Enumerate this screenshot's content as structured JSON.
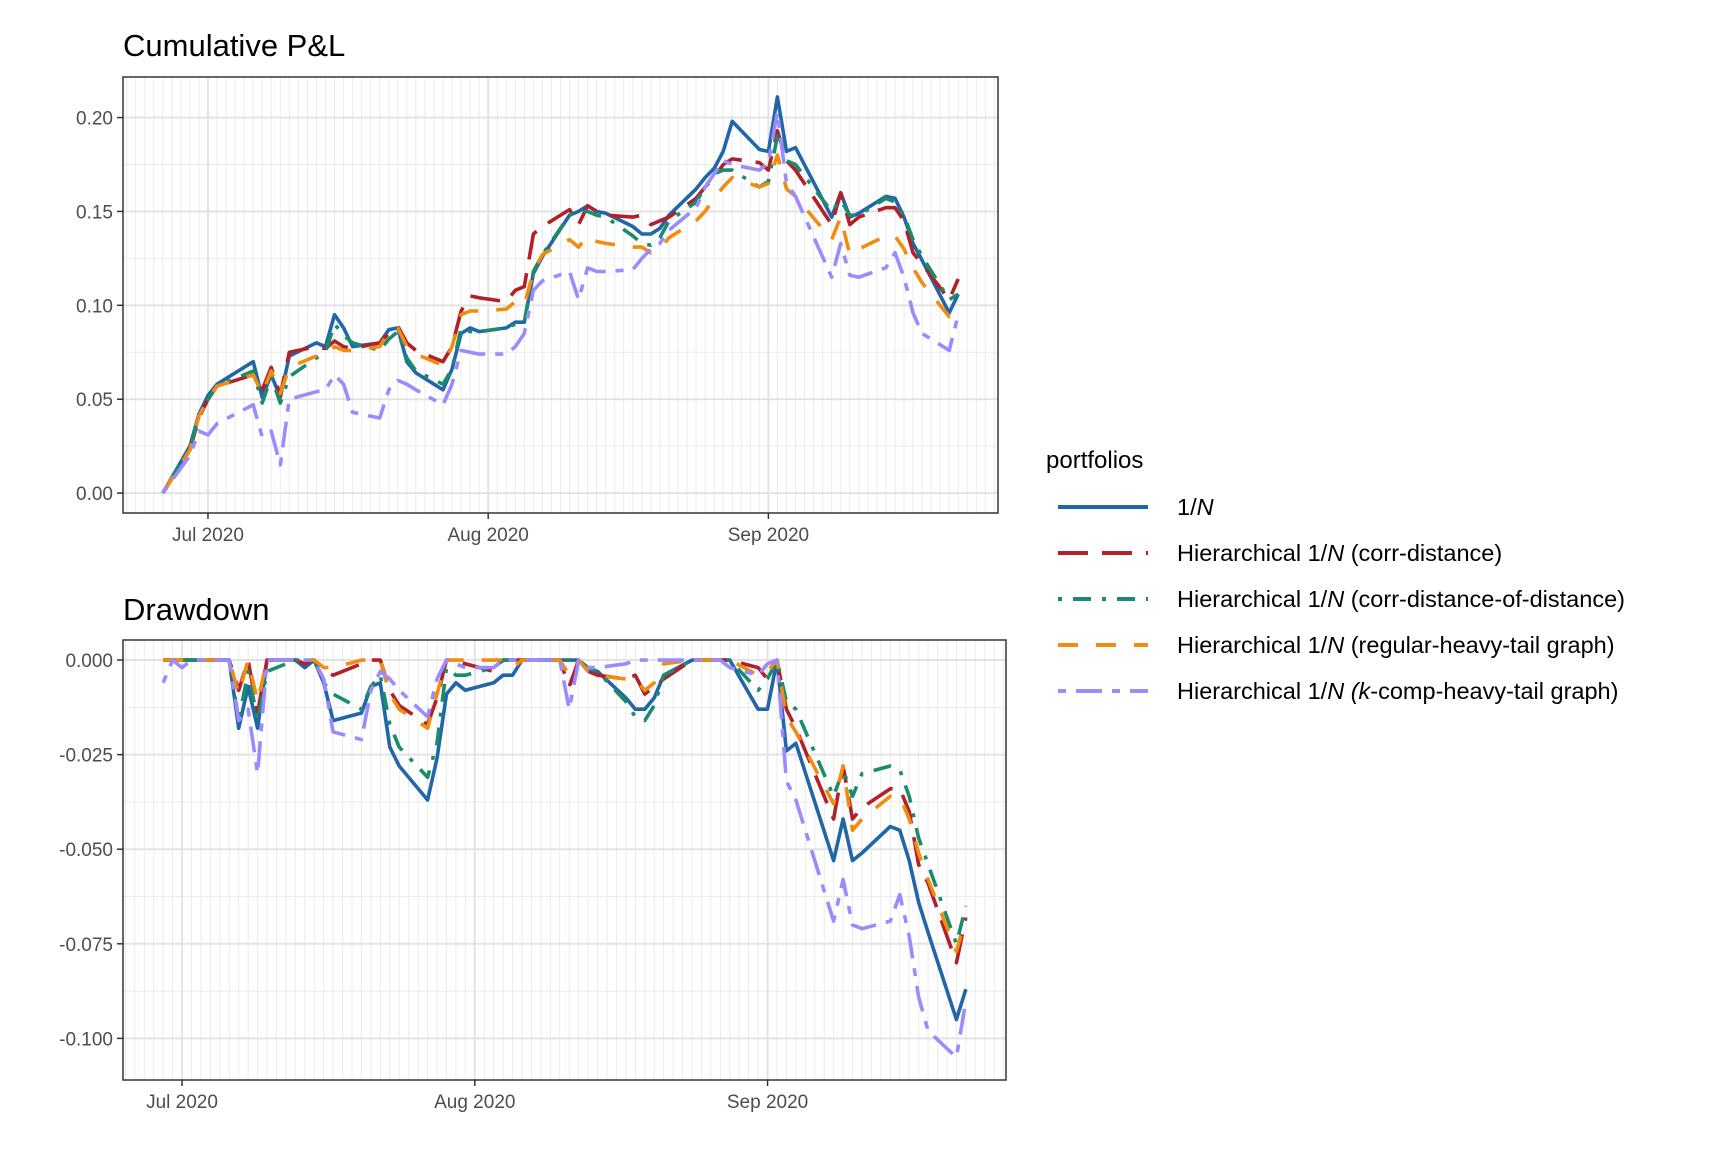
{
  "legend": {
    "title": "portfolios",
    "placement": "right",
    "entries": [
      {
        "pre": "1/",
        "italic": "N",
        "post": "",
        "color": "#2166a8",
        "linetype": "solid"
      },
      {
        "pre": "Hierarchical 1/",
        "italic": "N",
        "post": " (corr-distance)",
        "color": "#b2202a",
        "linetype": "dashed"
      },
      {
        "pre": "Hierarchical 1/",
        "italic": "N",
        "post": " (corr-distance-of-distance)",
        "color": "#1a8c6c",
        "linetype": "dotdash"
      },
      {
        "pre": "Hierarchical 1/",
        "italic": "N",
        "post": " (regular-heavy-tail graph)",
        "color": "#f08c0f",
        "linetype": "longdash"
      },
      {
        "pre": "Hierarchical 1/",
        "italic": "N (",
        "post": "",
        "k": "k",
        "post2": "-comp-heavy-tail graph)",
        "color": "#9a8bff",
        "linetype": "twodash"
      }
    ]
  },
  "chart_data": [
    {
      "type": "line",
      "title": "Cumulative P&L",
      "xlabel": "",
      "ylabel": "",
      "xlim": [
        "2020-06-26",
        "2020-09-22"
      ],
      "ylim": [
        -0.0106,
        0.2216
      ],
      "grid": true,
      "xticks": [
        {
          "date": "2020-07-01",
          "label": "Jul 2020"
        },
        {
          "date": "2020-08-01",
          "label": "Aug 2020"
        },
        {
          "date": "2020-09-01",
          "label": "Sep 2020"
        }
      ],
      "yticks": [
        {
          "value": 0,
          "label": "0.00"
        },
        {
          "value": 0.05,
          "label": "0.05"
        },
        {
          "value": 0.1,
          "label": "0.10"
        },
        {
          "value": 0.15,
          "label": "0.15"
        },
        {
          "value": 0.2,
          "label": "0.20"
        }
      ],
      "dates": [
        "2020-06-26",
        "2020-06-29",
        "2020-06-30",
        "2020-07-01",
        "2020-07-02",
        "2020-07-06",
        "2020-07-07",
        "2020-07-08",
        "2020-07-09",
        "2020-07-10",
        "2020-07-13",
        "2020-07-14",
        "2020-07-15",
        "2020-07-16",
        "2020-07-17",
        "2020-07-20",
        "2020-07-21",
        "2020-07-22",
        "2020-07-23",
        "2020-07-24",
        "2020-07-27",
        "2020-07-28",
        "2020-07-29",
        "2020-07-30",
        "2020-07-31",
        "2020-08-03",
        "2020-08-04",
        "2020-08-05",
        "2020-08-06",
        "2020-08-07",
        "2020-08-10",
        "2020-08-11",
        "2020-08-12",
        "2020-08-13",
        "2020-08-14",
        "2020-08-17",
        "2020-08-18",
        "2020-08-19",
        "2020-08-20",
        "2020-08-21",
        "2020-08-24",
        "2020-08-25",
        "2020-08-26",
        "2020-08-27",
        "2020-08-28",
        "2020-08-31",
        "2020-09-01",
        "2020-09-02",
        "2020-09-03",
        "2020-09-04",
        "2020-09-08",
        "2020-09-09",
        "2020-09-10",
        "2020-09-11",
        "2020-09-14",
        "2020-09-15",
        "2020-09-16",
        "2020-09-17",
        "2020-09-18",
        "2020-09-21",
        "2020-09-22"
      ],
      "series": [
        {
          "name": "1/N",
          "values": [
            0,
            0.025,
            0.042,
            0.052,
            0.058,
            0.07,
            0.051,
            0.063,
            0.051,
            0.073,
            0.08,
            0.078,
            0.095,
            0.088,
            0.078,
            0.08,
            0.087,
            0.088,
            0.07,
            0.064,
            0.055,
            0.066,
            0.085,
            0.088,
            0.086,
            0.088,
            0.091,
            0.091,
            0.117,
            0.126,
            0.148,
            0.15,
            0.153,
            0.15,
            0.149,
            0.142,
            0.138,
            0.138,
            0.141,
            0.148,
            0.162,
            0.168,
            0.173,
            0.182,
            0.198,
            0.183,
            0.182,
            0.211,
            0.182,
            0.184,
            0.147,
            0.16,
            0.147,
            0.149,
            0.158,
            0.157,
            0.147,
            0.133,
            0.124,
            0.096,
            0.106
          ]
        },
        {
          "name": "Hierarchical 1/N (corr-distance)",
          "values": [
            0,
            0.023,
            0.04,
            0.05,
            0.057,
            0.063,
            0.055,
            0.067,
            0.052,
            0.075,
            0.078,
            0.077,
            0.081,
            0.078,
            0.077,
            0.08,
            0.085,
            0.089,
            0.08,
            0.076,
            0.07,
            0.078,
            0.097,
            0.105,
            0.104,
            0.102,
            0.108,
            0.11,
            0.138,
            0.142,
            0.151,
            0.143,
            0.153,
            0.15,
            0.148,
            0.147,
            0.148,
            0.143,
            0.145,
            0.147,
            0.157,
            0.163,
            0.168,
            0.175,
            0.178,
            0.176,
            0.172,
            0.193,
            0.177,
            0.172,
            0.143,
            0.16,
            0.143,
            0.147,
            0.152,
            0.152,
            0.145,
            0.128,
            0.122,
            0.103,
            0.114
          ]
        },
        {
          "name": "Hierarchical 1/N (corr-distance-of-distance)",
          "values": [
            0,
            0.024,
            0.041,
            0.05,
            0.057,
            0.065,
            0.048,
            0.062,
            0.048,
            0.062,
            0.072,
            0.075,
            0.09,
            0.084,
            0.08,
            0.076,
            0.082,
            0.086,
            0.072,
            0.065,
            0.058,
            0.066,
            0.088,
            0.086,
            0.086,
            0.088,
            0.09,
            0.091,
            0.118,
            0.127,
            0.148,
            0.15,
            0.15,
            0.148,
            0.147,
            0.137,
            0.133,
            0.132,
            0.136,
            0.145,
            0.155,
            0.163,
            0.17,
            0.172,
            0.172,
            0.163,
            0.166,
            0.19,
            0.177,
            0.175,
            0.15,
            0.156,
            0.148,
            0.148,
            0.157,
            0.155,
            0.148,
            0.135,
            0.126,
            0.103,
            0.106
          ]
        },
        {
          "name": "Hierarchical 1/N (regular-heavy-tail graph)",
          "values": [
            0,
            0.023,
            0.041,
            0.05,
            0.057,
            0.063,
            0.053,
            0.065,
            0.053,
            0.067,
            0.073,
            0.074,
            0.078,
            0.076,
            0.076,
            0.078,
            0.086,
            0.088,
            0.078,
            0.074,
            0.068,
            0.078,
            0.095,
            0.097,
            0.097,
            0.098,
            0.102,
            0.1,
            0.118,
            0.127,
            0.135,
            0.131,
            0.137,
            0.134,
            0.133,
            0.131,
            0.131,
            0.128,
            0.13,
            0.136,
            0.145,
            0.15,
            0.157,
            0.163,
            0.168,
            0.163,
            0.165,
            0.18,
            0.162,
            0.158,
            0.135,
            0.147,
            0.127,
            0.13,
            0.137,
            0.137,
            0.13,
            0.12,
            0.112,
            0.094,
            0.1
          ]
        },
        {
          "name": "Hierarchical 1/N (k-comp-heavy-tail graph)",
          "values": [
            0,
            0.02,
            0.033,
            0.031,
            0.037,
            0.047,
            0.03,
            0.033,
            0.015,
            0.05,
            0.054,
            0.055,
            0.063,
            0.058,
            0.043,
            0.04,
            0.055,
            0.06,
            0.058,
            0.055,
            0.047,
            0.058,
            0.076,
            0.075,
            0.074,
            0.074,
            0.078,
            0.085,
            0.108,
            0.113,
            0.118,
            0.103,
            0.12,
            0.118,
            0.118,
            0.119,
            0.125,
            0.13,
            0.133,
            0.14,
            0.152,
            0.163,
            0.17,
            0.177,
            0.175,
            0.172,
            0.176,
            0.203,
            0.165,
            0.158,
            0.115,
            0.133,
            0.116,
            0.115,
            0.12,
            0.128,
            0.115,
            0.096,
            0.085,
            0.076,
            0.095
          ]
        }
      ]
    },
    {
      "type": "line",
      "title": "Drawdown",
      "xlabel": "",
      "ylabel": "",
      "xlim": [
        "2020-06-29",
        "2020-09-22"
      ],
      "ylim": [
        -0.111,
        0.0053
      ],
      "grid": true,
      "xticks": [
        {
          "date": "2020-07-01",
          "label": "Jul 2020"
        },
        {
          "date": "2020-08-01",
          "label": "Aug 2020"
        },
        {
          "date": "2020-09-01",
          "label": "Sep 2020"
        }
      ],
      "yticks": [
        {
          "value": 0,
          "label": "0.000"
        },
        {
          "value": -0.025,
          "label": "-0.025"
        },
        {
          "value": -0.05,
          "label": "-0.050"
        },
        {
          "value": -0.075,
          "label": "-0.075"
        },
        {
          "value": -0.1,
          "label": "-0.100"
        }
      ],
      "dates": [
        "2020-06-29",
        "2020-06-30",
        "2020-07-01",
        "2020-07-02",
        "2020-07-06",
        "2020-07-07",
        "2020-07-08",
        "2020-07-09",
        "2020-07-10",
        "2020-07-13",
        "2020-07-14",
        "2020-07-15",
        "2020-07-16",
        "2020-07-17",
        "2020-07-20",
        "2020-07-21",
        "2020-07-22",
        "2020-07-23",
        "2020-07-24",
        "2020-07-27",
        "2020-07-28",
        "2020-07-29",
        "2020-07-30",
        "2020-07-31",
        "2020-08-03",
        "2020-08-04",
        "2020-08-05",
        "2020-08-06",
        "2020-08-07",
        "2020-08-10",
        "2020-08-11",
        "2020-08-12",
        "2020-08-13",
        "2020-08-14",
        "2020-08-17",
        "2020-08-18",
        "2020-08-19",
        "2020-08-20",
        "2020-08-21",
        "2020-08-24",
        "2020-08-25",
        "2020-08-26",
        "2020-08-27",
        "2020-08-28",
        "2020-08-31",
        "2020-09-01",
        "2020-09-02",
        "2020-09-03",
        "2020-09-04",
        "2020-09-08",
        "2020-09-09",
        "2020-09-10",
        "2020-09-11",
        "2020-09-14",
        "2020-09-15",
        "2020-09-16",
        "2020-09-17",
        "2020-09-18",
        "2020-09-21",
        "2020-09-22"
      ],
      "series": [
        {
          "name": "1/N",
          "values": [
            0,
            0,
            0,
            0,
            0,
            -0.018,
            -0.007,
            -0.018,
            0,
            0,
            -0.002,
            0,
            -0.006,
            -0.016,
            -0.014,
            -0.007,
            -0.006,
            -0.023,
            -0.028,
            -0.037,
            -0.026,
            -0.009,
            -0.006,
            -0.008,
            -0.006,
            -0.004,
            -0.004,
            0,
            0,
            0,
            0,
            0,
            -0.003,
            -0.003,
            -0.01,
            -0.013,
            -0.013,
            -0.01,
            -0.004,
            0,
            0,
            0,
            0,
            0,
            -0.013,
            -0.013,
            0,
            -0.024,
            -0.022,
            -0.053,
            -0.042,
            -0.053,
            -0.051,
            -0.044,
            -0.045,
            -0.053,
            -0.064,
            -0.072,
            -0.095,
            -0.087
          ]
        },
        {
          "name": "Hierarchical 1/N (corr-distance)",
          "values": [
            0,
            0,
            0,
            0,
            0,
            -0.008,
            0,
            -0.014,
            0,
            0,
            -0.001,
            0,
            -0.003,
            -0.004,
            -0.001,
            0,
            0,
            -0.008,
            -0.012,
            -0.017,
            -0.01,
            0,
            0,
            -0.001,
            -0.003,
            0,
            0,
            0,
            0,
            0,
            -0.007,
            0,
            -0.003,
            -0.004,
            -0.005,
            -0.004,
            -0.009,
            -0.007,
            -0.005,
            0,
            0,
            0,
            0,
            0,
            -0.002,
            -0.005,
            0,
            -0.013,
            -0.018,
            -0.042,
            -0.028,
            -0.042,
            -0.039,
            -0.034,
            -0.034,
            -0.04,
            -0.054,
            -0.059,
            -0.08,
            -0.068
          ]
        },
        {
          "name": "Hierarchical 1/N (corr-distance-of-distance)",
          "values": [
            0,
            0,
            0,
            0,
            0,
            -0.016,
            -0.003,
            -0.016,
            -0.003,
            0,
            0,
            0,
            -0.006,
            -0.009,
            -0.013,
            -0.007,
            -0.004,
            -0.017,
            -0.023,
            -0.031,
            -0.022,
            -0.002,
            -0.004,
            -0.004,
            -0.002,
            0,
            0,
            0,
            0,
            0,
            0,
            0,
            -0.002,
            -0.003,
            -0.011,
            -0.015,
            -0.016,
            -0.012,
            -0.004,
            0,
            0,
            0,
            0,
            0,
            -0.008,
            -0.005,
            0,
            -0.011,
            -0.013,
            -0.036,
            -0.029,
            -0.036,
            -0.03,
            -0.028,
            -0.029,
            -0.036,
            -0.047,
            -0.054,
            -0.075,
            -0.065
          ]
        },
        {
          "name": "Hierarchical 1/N (regular-heavy-tail graph)",
          "values": [
            0,
            0,
            0,
            0,
            0,
            -0.009,
            0,
            -0.011,
            0,
            0,
            0,
            0,
            -0.002,
            -0.002,
            0,
            0,
            0,
            -0.009,
            -0.013,
            -0.018,
            -0.009,
            0,
            0,
            0,
            0,
            0,
            -0.002,
            0,
            0,
            0,
            -0.004,
            0,
            -0.003,
            -0.004,
            -0.005,
            -0.005,
            -0.008,
            -0.006,
            -0.001,
            0,
            0,
            0,
            0,
            0,
            -0.004,
            -0.003,
            0,
            -0.015,
            -0.019,
            -0.038,
            -0.028,
            -0.045,
            -0.042,
            -0.036,
            -0.036,
            -0.042,
            -0.051,
            -0.058,
            -0.077,
            -0.068
          ]
        },
        {
          "name": "Hierarchical 1/N (k-comp-heavy-tail graph)",
          "values": [
            -0.006,
            0,
            -0.002,
            0,
            0,
            -0.016,
            -0.013,
            -0.03,
            0,
            0,
            0,
            0,
            -0.005,
            -0.019,
            -0.021,
            -0.008,
            -0.003,
            -0.005,
            -0.008,
            -0.015,
            -0.005,
            0,
            -0.001,
            -0.002,
            -0.002,
            0,
            0,
            0,
            0,
            0,
            -0.013,
            0,
            -0.002,
            -0.002,
            -0.001,
            0,
            0,
            0,
            0,
            0,
            0,
            0,
            0,
            -0.002,
            -0.004,
            -0.001,
            0,
            -0.032,
            -0.037,
            -0.069,
            -0.058,
            -0.07,
            -0.071,
            -0.069,
            -0.062,
            -0.073,
            -0.089,
            -0.098,
            -0.105,
            -0.09
          ]
        }
      ]
    }
  ]
}
